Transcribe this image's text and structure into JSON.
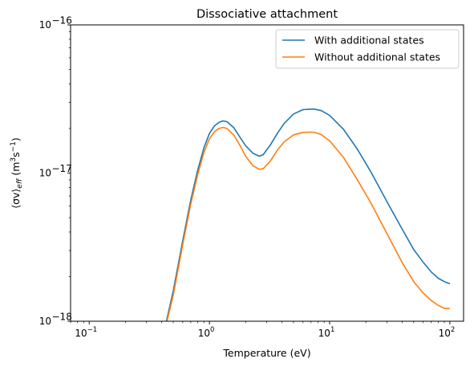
{
  "chart_data": {
    "type": "line",
    "title": "Dissociative attachment",
    "xlabel": "Temperature (eV)",
    "ylabel_parts": [
      "⟨σv⟩",
      "eff",
      " (m",
      "3",
      "s",
      "−1",
      ")"
    ],
    "xscale": "log",
    "yscale": "log",
    "xlim": [
      0.07,
      130
    ],
    "ylim": [
      1e-18,
      1e-16
    ],
    "x_ticks": [
      {
        "value": 0.1,
        "base": "10",
        "exp": "−1"
      },
      {
        "value": 1,
        "base": "10",
        "exp": "0"
      },
      {
        "value": 10,
        "base": "10",
        "exp": "1"
      },
      {
        "value": 100,
        "base": "10",
        "exp": "2"
      }
    ],
    "y_ticks": [
      {
        "value": 1e-18,
        "base": "10",
        "exp": "−18"
      },
      {
        "value": 1e-17,
        "base": "10",
        "exp": "−17"
      },
      {
        "value": 1e-16,
        "base": "10",
        "exp": "−16"
      }
    ],
    "legend_position": "top-right",
    "series": [
      {
        "name": "With additional states",
        "color": "#1f77b4",
        "x": [
          0.43,
          0.5,
          0.6,
          0.7,
          0.8,
          0.9,
          1.0,
          1.1,
          1.2,
          1.3,
          1.4,
          1.6,
          1.8,
          2.0,
          2.3,
          2.6,
          2.8,
          3.2,
          3.7,
          4.2,
          5.0,
          6.0,
          7.0,
          7.5,
          8.5,
          10,
          13,
          17,
          22,
          30,
          40,
          50,
          60,
          70,
          80,
          90,
          100
        ],
        "y": [
          9.3e-19,
          1.6e-18,
          3.5e-18,
          6.6e-18,
          1.05e-17,
          1.48e-17,
          1.85e-17,
          2.08e-17,
          2.2e-17,
          2.25e-17,
          2.22e-17,
          2.02e-17,
          1.74e-17,
          1.53e-17,
          1.36e-17,
          1.3e-17,
          1.33e-17,
          1.54e-17,
          1.87e-17,
          2.17e-17,
          2.5e-17,
          2.68e-17,
          2.7e-17,
          2.7e-17,
          2.64e-17,
          2.45e-17,
          1.98e-17,
          1.45e-17,
          1.02e-17,
          6.4e-18,
          4.2e-18,
          3.05e-18,
          2.5e-18,
          2.15e-18,
          1.95e-18,
          1.85e-18,
          1.79e-18
        ]
      },
      {
        "name": "Without additional states",
        "color": "#ff7f0e",
        "x": [
          0.43,
          0.5,
          0.6,
          0.7,
          0.8,
          0.9,
          1.0,
          1.1,
          1.2,
          1.3,
          1.4,
          1.6,
          1.8,
          2.0,
          2.3,
          2.6,
          2.8,
          3.2,
          3.7,
          4.2,
          5.0,
          6.0,
          7.0,
          7.5,
          8.5,
          10,
          13,
          17,
          22,
          30,
          40,
          50,
          60,
          70,
          80,
          90,
          100
        ],
        "y": [
          9e-19,
          1.5e-18,
          3.3e-18,
          6.2e-18,
          9.8e-18,
          1.38e-17,
          1.7e-17,
          1.9e-17,
          2e-17,
          2.03e-17,
          2e-17,
          1.8e-17,
          1.53e-17,
          1.3e-17,
          1.12e-17,
          1.06e-17,
          1.07e-17,
          1.2e-17,
          1.44e-17,
          1.63e-17,
          1.81e-17,
          1.88e-17,
          1.89e-17,
          1.88e-17,
          1.82e-17,
          1.65e-17,
          1.28e-17,
          9e-18,
          6.3e-18,
          3.9e-18,
          2.5e-18,
          1.85e-18,
          1.55e-18,
          1.38e-18,
          1.28e-18,
          1.22e-18,
          1.22e-18
        ]
      }
    ]
  }
}
